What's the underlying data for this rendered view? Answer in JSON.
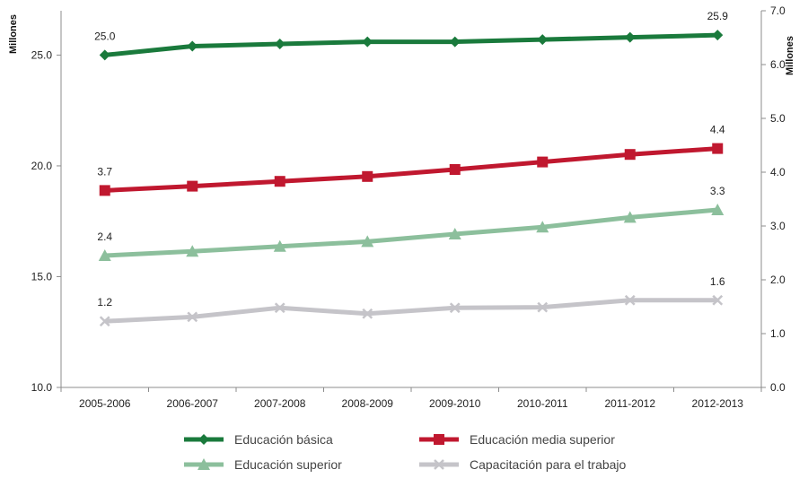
{
  "chart_data": {
    "type": "line",
    "categories": [
      "2005-2006",
      "2006-2007",
      "2007-2008",
      "2008-2009",
      "2009-2010",
      "2010-2011",
      "2011-2012",
      "2012-2013"
    ],
    "left_axis": {
      "label": "Millones",
      "ylim": [
        10.0,
        27.0
      ],
      "ticks": [
        "10.0",
        "15.0",
        "20.0",
        "25.0"
      ]
    },
    "right_axis": {
      "label": "Millones",
      "ylim": [
        0.0,
        7.0
      ],
      "ticks": [
        "0.0",
        "1.0",
        "2.0",
        "3.0",
        "4.0",
        "5.0",
        "6.0",
        "7.0"
      ]
    },
    "grid": false,
    "legend_position": "bottom",
    "series": [
      {
        "name": "Educación básica",
        "axis": "left",
        "color": "#1a7a3c",
        "marker": "diamond",
        "values": [
          25.0,
          25.4,
          25.5,
          25.6,
          25.6,
          25.7,
          25.8,
          25.9
        ],
        "point_labels": [
          {
            "index": 0,
            "text": "25.0"
          },
          {
            "index": 7,
            "text": "25.9"
          }
        ]
      },
      {
        "name": "Educación media superior",
        "axis": "right",
        "color": "#c0182f",
        "marker": "square",
        "values": [
          3.66,
          3.74,
          3.83,
          3.92,
          4.05,
          4.19,
          4.33,
          4.44
        ],
        "point_labels": [
          {
            "index": 0,
            "text": "3.7"
          },
          {
            "index": 7,
            "text": "4.4"
          }
        ]
      },
      {
        "name": "Educación superior",
        "axis": "right",
        "color": "#8cbf9c",
        "marker": "triangle",
        "values": [
          2.45,
          2.53,
          2.62,
          2.71,
          2.85,
          2.98,
          3.16,
          3.3
        ],
        "point_labels": [
          {
            "index": 0,
            "text": "2.4"
          },
          {
            "index": 7,
            "text": "3.3"
          }
        ]
      },
      {
        "name": "Capacitación para el trabajo",
        "axis": "right",
        "color": "#c5c4c9",
        "marker": "x",
        "values": [
          1.23,
          1.31,
          1.48,
          1.37,
          1.48,
          1.49,
          1.62,
          1.62
        ],
        "point_labels": [
          {
            "index": 0,
            "text": "1.2"
          },
          {
            "index": 7,
            "text": "1.6"
          }
        ]
      }
    ]
  }
}
